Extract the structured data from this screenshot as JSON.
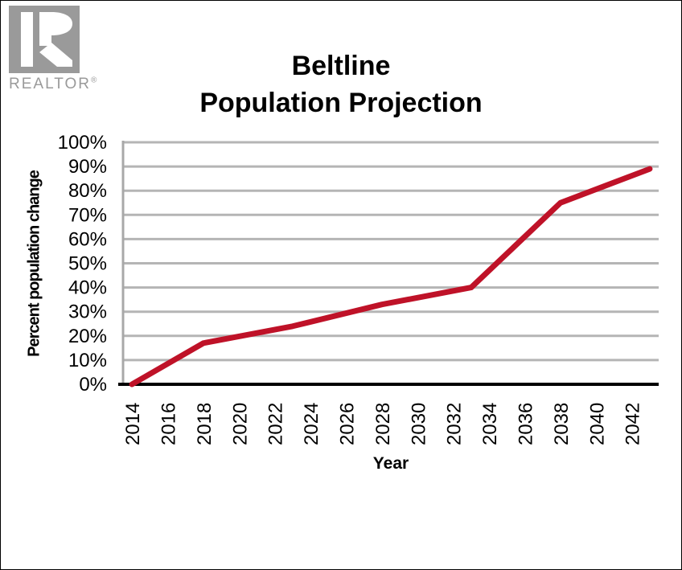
{
  "window": {
    "background": "#ffffff",
    "border_color": "#000000"
  },
  "logo": {
    "text": "REALTOR",
    "reg": "®",
    "color": "#9a9a9a"
  },
  "chart_data": {
    "type": "line",
    "title": "Beltline Population Projection",
    "title_line1": "Beltline",
    "title_line2": "Population Projection",
    "xlabel": "Year",
    "ylabel": "Percent population change",
    "x_tick_labels": [
      "2014",
      "2016",
      "2018",
      "2020",
      "2022",
      "2024",
      "2026",
      "2028",
      "2030",
      "2032",
      "2034",
      "2036",
      "2038",
      "2040",
      "2042"
    ],
    "x_categories": {
      "start": 2014,
      "end": 2043
    },
    "ylim": [
      0,
      100
    ],
    "y_ticks": [
      0,
      10,
      20,
      30,
      40,
      50,
      60,
      70,
      80,
      90,
      100
    ],
    "y_tick_suffix": "%",
    "grid": "horizontal",
    "legend": "none",
    "series": [
      {
        "name": "Beltline population projection",
        "color": "#bf1228",
        "points": [
          {
            "year": 2014,
            "value": 0
          },
          {
            "year": 2018,
            "value": 17
          },
          {
            "year": 2023,
            "value": 24
          },
          {
            "year": 2028,
            "value": 33
          },
          {
            "year": 2033,
            "value": 40
          },
          {
            "year": 2038,
            "value": 75
          },
          {
            "year": 2043,
            "value": 89
          }
        ]
      }
    ],
    "colors": {
      "gridline": "#b5b5b5",
      "y_axis": "#a8a8a8",
      "x_axis": "#000000",
      "tick_label": "#000000",
      "title": "#000000"
    }
  }
}
